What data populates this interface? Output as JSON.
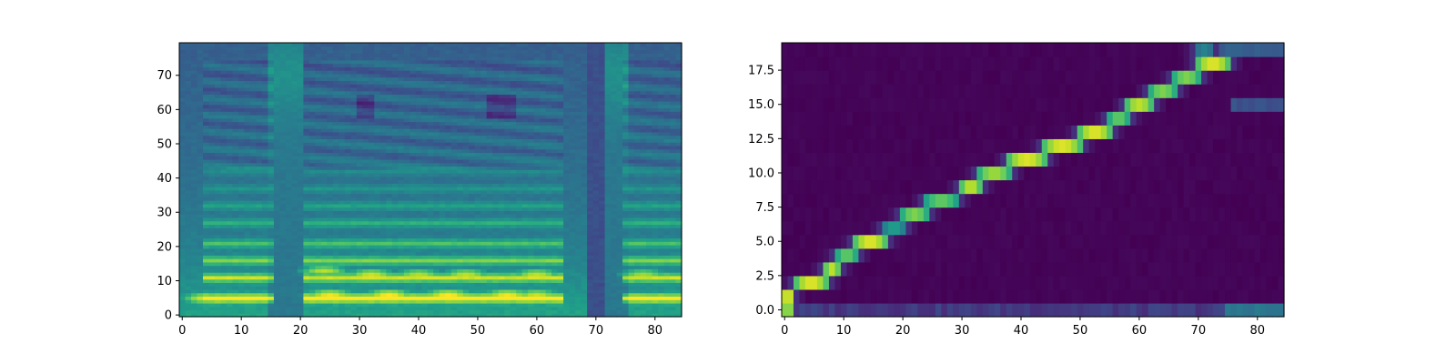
{
  "colors": {
    "background": "#440154",
    "colormap": [
      "#440154",
      "#482878",
      "#3e4989",
      "#31688e",
      "#26828e",
      "#1f9e89",
      "#35b779",
      "#6ece58",
      "#b5de2b",
      "#fde725"
    ]
  },
  "chart_data": [
    {
      "type": "heatmap",
      "title": "",
      "xlabel": "",
      "ylabel": "",
      "xlim": [
        -0.5,
        84.5
      ],
      "ylim": [
        -0.5,
        79.5
      ],
      "x_ticks": [
        0,
        10,
        20,
        30,
        40,
        50,
        60,
        70,
        80
      ],
      "x_tick_labels": [
        "0",
        "10",
        "20",
        "30",
        "40",
        "50",
        "60",
        "70",
        "80"
      ],
      "y_ticks": [
        0,
        10,
        20,
        30,
        40,
        50,
        60,
        70
      ],
      "y_tick_labels": [
        "0",
        "10",
        "20",
        "30",
        "40",
        "50",
        "60",
        "70"
      ],
      "n_cols": 85,
      "n_rows": 80,
      "colormap": "viridis",
      "value_range": [
        0,
        1
      ],
      "silent_frames": [
        [
          15,
          20
        ],
        [
          69,
          75
        ]
      ],
      "voiced_segments": [
        [
          4,
          15
        ],
        [
          21,
          64
        ],
        [
          75,
          84
        ]
      ],
      "harmonic_rows": [
        5,
        11,
        16,
        21,
        27,
        32,
        37,
        42
      ],
      "bright_spots": [
        [
          4,
          5,
          0.95
        ],
        [
          6,
          5,
          0.97
        ],
        [
          10,
          5,
          0.92
        ],
        [
          25,
          6,
          0.98
        ],
        [
          35,
          6,
          1.0
        ],
        [
          45,
          6,
          1.0
        ],
        [
          55,
          6,
          0.98
        ],
        [
          60,
          6,
          0.92
        ],
        [
          24,
          13,
          0.9
        ],
        [
          32,
          12,
          0.92
        ],
        [
          40,
          12,
          0.88
        ],
        [
          48,
          12,
          0.9
        ],
        [
          60,
          12,
          0.9
        ],
        [
          78,
          12,
          0.85
        ],
        [
          80,
          5,
          0.85
        ]
      ]
    },
    {
      "type": "heatmap",
      "title": "",
      "xlabel": "",
      "ylabel": "",
      "xlim": [
        -0.5,
        84.5
      ],
      "ylim": [
        -0.5,
        19.5
      ],
      "x_ticks": [
        0,
        10,
        20,
        30,
        40,
        50,
        60,
        70,
        80
      ],
      "x_tick_labels": [
        "0",
        "10",
        "20",
        "30",
        "40",
        "50",
        "60",
        "70",
        "80"
      ],
      "y_ticks": [
        0,
        2.5,
        5,
        7.5,
        10,
        12.5,
        15,
        17.5
      ],
      "y_tick_labels": [
        "0.0",
        "2.5",
        "5.0",
        "7.5",
        "10.0",
        "12.5",
        "15.0",
        "17.5"
      ],
      "n_cols": 85,
      "n_rows": 20,
      "colormap": "viridis",
      "value_range": [
        0,
        1
      ],
      "alignment_path": [
        {
          "row": 0,
          "x_start": 0,
          "x_end": 1,
          "peak": 0.85
        },
        {
          "row": 1,
          "x_start": 0,
          "x_end": 1,
          "peak": 0.95
        },
        {
          "row": 2,
          "x_start": 2,
          "x_end": 7,
          "peak": 0.95
        },
        {
          "row": 3,
          "x_start": 7,
          "x_end": 9,
          "peak": 0.9
        },
        {
          "row": 4,
          "x_start": 9,
          "x_end": 12,
          "peak": 0.75
        },
        {
          "row": 5,
          "x_start": 12,
          "x_end": 17,
          "peak": 0.95
        },
        {
          "row": 6,
          "x_start": 17,
          "x_end": 20,
          "peak": 0.55
        },
        {
          "row": 7,
          "x_start": 20,
          "x_end": 24,
          "peak": 0.8
        },
        {
          "row": 8,
          "x_start": 24,
          "x_end": 29,
          "peak": 0.75
        },
        {
          "row": 9,
          "x_start": 30,
          "x_end": 33,
          "peak": 0.9
        },
        {
          "row": 10,
          "x_start": 33,
          "x_end": 38,
          "peak": 0.85
        },
        {
          "row": 11,
          "x_start": 38,
          "x_end": 44,
          "peak": 0.95
        },
        {
          "row": 12,
          "x_start": 44,
          "x_end": 50,
          "peak": 0.95
        },
        {
          "row": 13,
          "x_start": 50,
          "x_end": 55,
          "peak": 0.95
        },
        {
          "row": 14,
          "x_start": 55,
          "x_end": 58,
          "peak": 0.75
        },
        {
          "row": 15,
          "x_start": 58,
          "x_end": 62,
          "peak": 0.9
        },
        {
          "row": 16,
          "x_start": 62,
          "x_end": 66,
          "peak": 0.8
        },
        {
          "row": 17,
          "x_start": 66,
          "x_end": 70,
          "peak": 0.8
        },
        {
          "row": 18,
          "x_start": 70,
          "x_end": 75,
          "peak": 0.95
        },
        {
          "row": 19,
          "x_start": 70,
          "x_end": 72,
          "peak": 0.45
        }
      ],
      "padding_rows": [
        [
          0,
          75,
          84,
          0.4
        ],
        [
          19,
          74,
          84,
          0.3
        ],
        [
          15,
          76,
          84,
          0.25
        ]
      ]
    }
  ]
}
